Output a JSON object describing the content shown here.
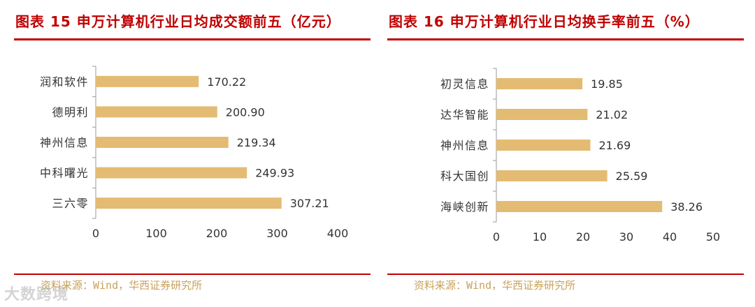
{
  "left": {
    "title": "图表 15  申万计算机行业日均成交额前五（亿元）",
    "source": "资料来源：Wind，华西证券研究所"
  },
  "right": {
    "title": "图表 16  申万计算机行业日均换手率前五（%）",
    "source": "资料来源：Wind，华西证券研究所"
  },
  "watermark": "大数跨境",
  "colors": {
    "bar": "#e4bb72",
    "accent": "#c00000",
    "axis": "#9a9a9a",
    "text": "#333333"
  },
  "chart_data": [
    {
      "type": "bar",
      "orientation": "horizontal",
      "categories": [
        "润和软件",
        "德明利",
        "神州信息",
        "中科曙光",
        "三六零"
      ],
      "values": [
        170.22,
        200.9,
        219.34,
        249.93,
        307.21
      ],
      "value_labels": [
        "170.22",
        "200.90",
        "219.34",
        "249.93",
        "307.21"
      ],
      "xlim": [
        0,
        400
      ],
      "xticks": [
        0,
        100,
        200,
        300,
        400
      ],
      "grid": false,
      "legend": "none"
    },
    {
      "type": "bar",
      "orientation": "horizontal",
      "categories": [
        "初灵信息",
        "达华智能",
        "神州信息",
        "科大国创",
        "海峡创新"
      ],
      "values": [
        19.85,
        21.02,
        21.69,
        25.59,
        38.26
      ],
      "value_labels": [
        "19.85",
        "21.02",
        "21.69",
        "25.59",
        "38.26"
      ],
      "xlim": [
        0,
        50
      ],
      "xticks": [
        0,
        10,
        20,
        30,
        40,
        50
      ],
      "grid": false,
      "legend": "none"
    }
  ]
}
